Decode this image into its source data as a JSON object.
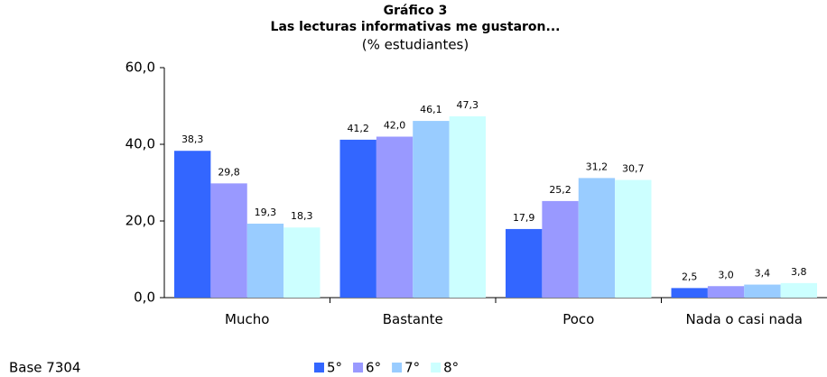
{
  "chart_data": {
    "type": "bar",
    "title": "Gráfico 3",
    "subtitle": "Las lecturas informativas me gustaron...",
    "note": "(% estudiantes)",
    "footer": "Base 7304",
    "categories": [
      "Mucho",
      "Bastante",
      "Poco",
      "Nada o casi nada"
    ],
    "series": [
      {
        "name": "5°",
        "color": "#3366ff",
        "values": [
          38.3,
          41.2,
          17.9,
          2.5
        ],
        "value_labels": [
          "38,3",
          "41,2",
          "17,9",
          "2,5"
        ]
      },
      {
        "name": "6°",
        "color": "#9999ff",
        "values": [
          29.8,
          42.0,
          25.2,
          3.0
        ],
        "value_labels": [
          "29,8",
          "42,0",
          "25,2",
          "3,0"
        ]
      },
      {
        "name": "7°",
        "color": "#99ccff",
        "values": [
          19.3,
          46.1,
          31.2,
          3.4
        ],
        "value_labels": [
          "19,3",
          "46,1",
          "31,2",
          "3,4"
        ]
      },
      {
        "name": "8°",
        "color": "#ccffff",
        "values": [
          18.3,
          47.3,
          30.7,
          3.8
        ],
        "value_labels": [
          "18,3",
          "47,3",
          "30,7",
          "3,8"
        ]
      }
    ],
    "ylim": [
      0,
      60
    ],
    "yticks": [
      {
        "value": 0,
        "label": "0,0"
      },
      {
        "value": 20,
        "label": "20,0"
      },
      {
        "value": 40,
        "label": "40,0"
      },
      {
        "value": 60,
        "label": "60,0"
      }
    ],
    "legend": "bottom",
    "grid": false
  }
}
